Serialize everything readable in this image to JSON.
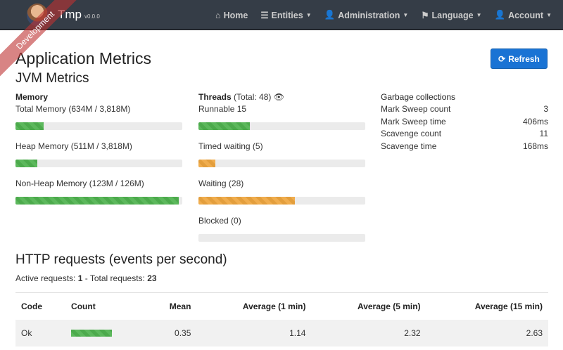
{
  "navbar": {
    "brand": "Tmp",
    "version": "v0.0.0",
    "ribbon": "Development",
    "items": [
      {
        "label": "Home",
        "icon": "home-icon",
        "caret": false
      },
      {
        "label": "Entities",
        "icon": "list-icon",
        "caret": true
      },
      {
        "label": "Administration",
        "icon": "user-plus-icon",
        "caret": true
      },
      {
        "label": "Language",
        "icon": "flag-icon",
        "caret": true
      },
      {
        "label": "Account",
        "icon": "user-icon",
        "caret": true
      }
    ]
  },
  "page": {
    "title": "Application Metrics",
    "refresh": "Refresh",
    "jvm_title": "JVM Metrics"
  },
  "memory": {
    "title": "Memory",
    "items": [
      {
        "label": "Total Memory (634M / 3,818M)",
        "percent": 17
      },
      {
        "label": "Heap Memory (511M / 3,818M)",
        "percent": 13
      },
      {
        "label": "Non-Heap Memory (123M / 126M)",
        "percent": 98
      }
    ]
  },
  "threads": {
    "title": "Threads",
    "total": "(Total: 48)",
    "items": [
      {
        "label": "Runnable 15",
        "percent": 31,
        "status": "success"
      },
      {
        "label": "Timed waiting (5)",
        "percent": 10,
        "status": "warning"
      },
      {
        "label": "Waiting (28)",
        "percent": 58,
        "status": "warning"
      },
      {
        "label": "Blocked (0)",
        "percent": 0,
        "status": "danger"
      }
    ]
  },
  "gc": {
    "title": "Garbage collections",
    "rows": [
      {
        "label": "Mark Sweep count",
        "value": "3"
      },
      {
        "label": "Mark Sweep time",
        "value": "406ms"
      },
      {
        "label": "Scavenge count",
        "value": "11"
      },
      {
        "label": "Scavenge time",
        "value": "168ms"
      }
    ]
  },
  "http": {
    "title": "HTTP requests (events per second)",
    "active_label": "Active requests:",
    "active": "1",
    "total_label": " - Total requests:",
    "total": "23",
    "headers": [
      "Code",
      "Count",
      "Mean",
      "Average (1 min)",
      "Average (5 min)",
      "Average (15 min)"
    ],
    "rows": [
      {
        "code": "Ok",
        "count_percent": 100,
        "mean": "0.35",
        "avg1": "1.14",
        "avg5": "2.32",
        "avg15": "2.63"
      }
    ]
  },
  "colors": {
    "navbar": "#353d47",
    "primary": "#1a73d4",
    "success": "#5cb85c",
    "warning": "#f0ad4e"
  }
}
